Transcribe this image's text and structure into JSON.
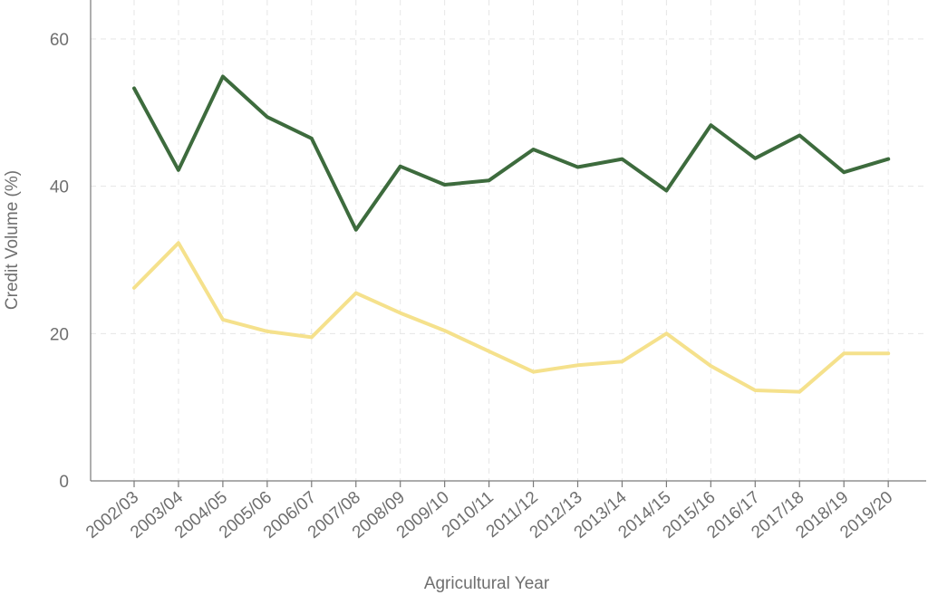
{
  "chart_data": {
    "type": "line",
    "title": "",
    "xlabel": "Agricultural Year",
    "ylabel": "Credit Volume (%)",
    "ylim": [
      0,
      60
    ],
    "yticks": [
      0,
      20,
      40,
      60
    ],
    "grid": true,
    "categories": [
      "2002/03",
      "2003/04",
      "2004/05",
      "2005/06",
      "2006/07",
      "2007/08",
      "2008/09",
      "2009/10",
      "2010/11",
      "2011/12",
      "2012/13",
      "2013/14",
      "2014/15",
      "2015/16",
      "2016/17",
      "2017/18",
      "2018/19",
      "2019/20"
    ],
    "series": [
      {
        "color": "#3d6b3d",
        "values": [
          53.3,
          42.2,
          54.9,
          49.4,
          46.5,
          34.1,
          42.7,
          40.2,
          40.8,
          45.0,
          42.6,
          43.7,
          39.4,
          48.3,
          43.8,
          46.9,
          41.9,
          43.7
        ]
      },
      {
        "color": "#f5e18c",
        "values": [
          26.2,
          32.3,
          21.9,
          20.3,
          19.5,
          25.5,
          22.8,
          20.4,
          17.6,
          14.8,
          15.7,
          16.2,
          20.0,
          15.6,
          12.3,
          12.1,
          17.3,
          17.3
        ]
      }
    ]
  }
}
